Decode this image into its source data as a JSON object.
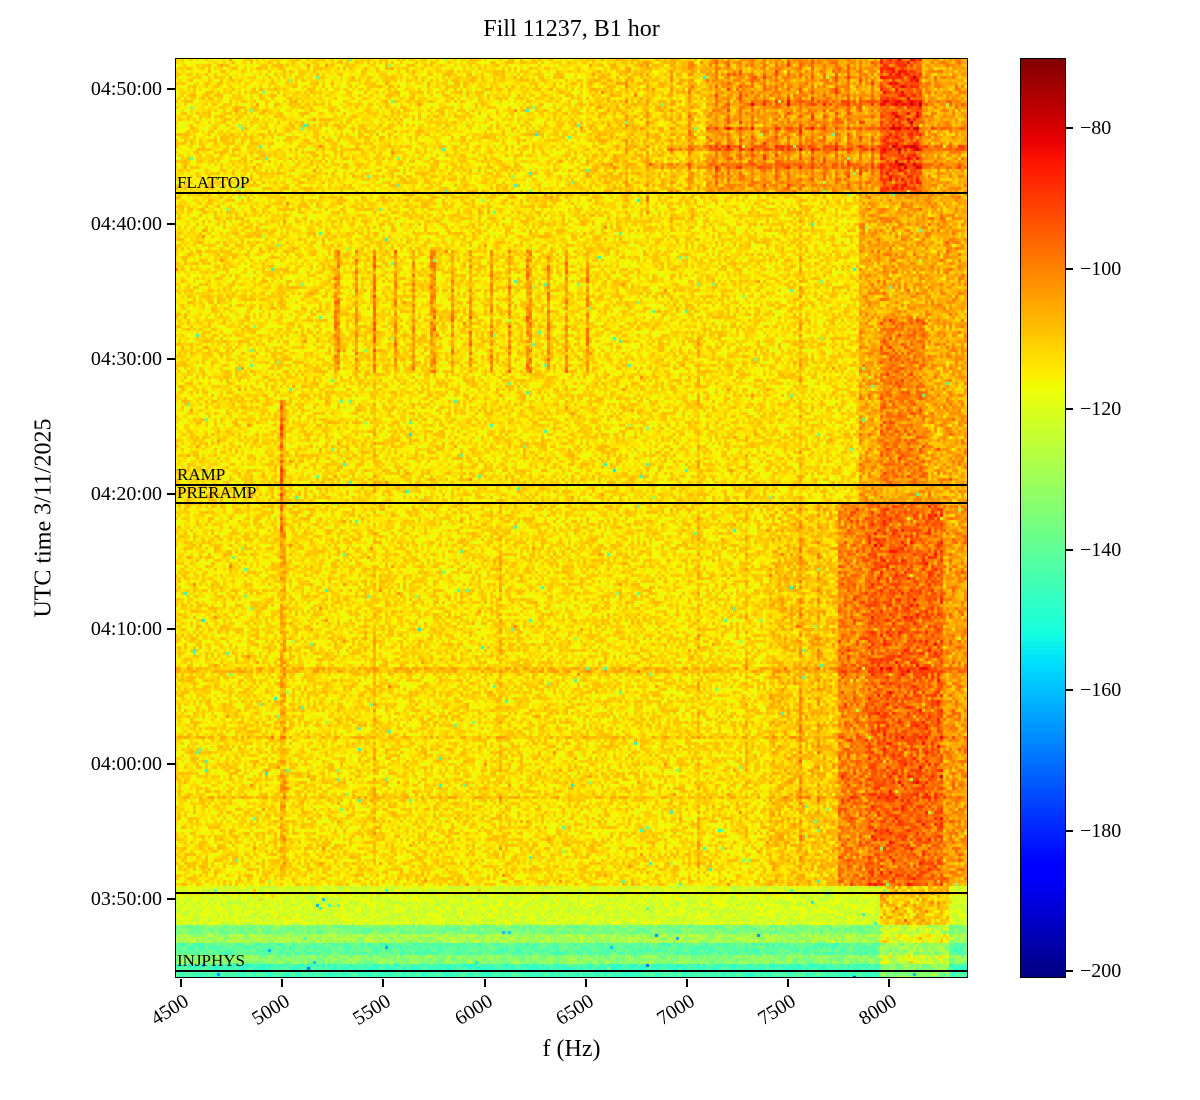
{
  "chart_data": {
    "type": "heatmap",
    "title": "Fill 11237, B1 hor",
    "xlabel": "f (Hz)",
    "ylabel": "UTC time 3/11/2025",
    "x_range_hz": [
      4470,
      8390
    ],
    "x_ticks": [
      4500,
      5000,
      5500,
      6000,
      6500,
      7000,
      7500,
      8000
    ],
    "y_time_range": [
      "03:44:10",
      "04:52:20"
    ],
    "y_ticks": [
      "04:50:00",
      "04:40:00",
      "04:30:00",
      "04:20:00",
      "04:10:00",
      "04:00:00",
      "03:50:00"
    ],
    "colormap": "jet",
    "grid": false,
    "legend": "none",
    "colorbar": {
      "vmin": -201,
      "vmax": -70,
      "ticks": [
        -80,
        -100,
        -120,
        -140,
        -160,
        -180,
        -200
      ]
    },
    "annotations": [
      {
        "label": "FLATTOP",
        "time": "04:42:20"
      },
      {
        "label": "RAMP",
        "time": "04:20:40"
      },
      {
        "label": "PRERAMP",
        "time": "04:19:20"
      },
      {
        "label": "",
        "time": "03:50:30"
      },
      {
        "label": "INJPHYS",
        "time": "03:44:40"
      }
    ],
    "field": {
      "base_db": -113,
      "noise_db": 6,
      "regions": [
        {
          "t0": "03:44:10",
          "t1": "03:45:10",
          "db": -145,
          "noise": 5
        },
        {
          "t0": "03:45:10",
          "t1": "03:45:50",
          "db": -133,
          "noise": 6
        },
        {
          "t0": "03:45:50",
          "t1": "03:46:40",
          "db": -141,
          "noise": 5
        },
        {
          "t0": "03:46:40",
          "t1": "03:47:30",
          "db": -129,
          "noise": 6
        },
        {
          "t0": "03:47:30",
          "t1": "03:48:10",
          "db": -136,
          "noise": 5
        },
        {
          "t0": "03:48:10",
          "t1": "03:51:00",
          "db": -121,
          "noise": 5
        }
      ],
      "vertical_bands": [
        {
          "f0": 7750,
          "f1": 8390,
          "t0": "03:51:00",
          "t1": "04:19:20",
          "add": 12,
          "noise": 7
        },
        {
          "f0": 7900,
          "f1": 8260,
          "t0": "03:51:00",
          "t1": "04:19:20",
          "add": 9,
          "noise": 6
        },
        {
          "f0": 7400,
          "f1": 7900,
          "t0": "03:51:00",
          "t1": "04:19:20",
          "add": 4,
          "noise": 4
        },
        {
          "f0": 7850,
          "f1": 8390,
          "t0": "04:19:20",
          "t1": "04:42:20",
          "add": 9,
          "noise": 6
        },
        {
          "f0": 7960,
          "f1": 8180,
          "t0": "04:20:40",
          "t1": "04:33:00",
          "add": 7,
          "noise": 5
        },
        {
          "f0": 7100,
          "f1": 8390,
          "t0": "04:42:20",
          "t1": "04:52:20",
          "add": 7,
          "noise": 5
        },
        {
          "f0": 6500,
          "f1": 8390,
          "t0": "04:42:20",
          "t1": "04:52:20",
          "add": 3,
          "noise": 3
        },
        {
          "f0": 7960,
          "f1": 8160,
          "t0": "04:42:20",
          "t1": "04:52:20",
          "add": 15,
          "noise": 7
        },
        {
          "f0": 7950,
          "f1": 8300,
          "t0": "03:44:10",
          "t1": "03:51:00",
          "add": 14,
          "noise": 6
        }
      ],
      "vertical_streaks": [
        {
          "f": 5000,
          "hw": 12,
          "t0": "03:52:00",
          "t1": "04:27:00",
          "add": 7
        },
        {
          "f": 4990,
          "hw": 8,
          "t0": "04:17:00",
          "t1": "04:27:00",
          "add": 9
        },
        {
          "f": 4810,
          "hw": 6,
          "t0": "04:03:00",
          "t1": "04:27:00",
          "add": 5
        },
        {
          "f": 5450,
          "hw": 7,
          "t0": "03:52:00",
          "t1": "04:38:00",
          "add": 5
        },
        {
          "f": 6080,
          "hw": 6,
          "t0": "03:54:00",
          "t1": "04:20:00",
          "add": 4
        },
        {
          "f": 6560,
          "hw": 6,
          "t0": "03:58:00",
          "t1": "04:20:00",
          "add": 4
        },
        {
          "f": 7060,
          "hw": 7,
          "t0": "03:52:00",
          "t1": "04:32:00",
          "add": 5
        },
        {
          "f": 7300,
          "hw": 6,
          "t0": "03:54:00",
          "t1": "04:25:00",
          "add": 4
        },
        {
          "f": 7560,
          "hw": 8,
          "t0": "03:52:00",
          "t1": "04:42:00",
          "add": 6
        },
        {
          "f": 7650,
          "hw": 6,
          "t0": "03:55:00",
          "t1": "04:19:00",
          "add": 5
        }
      ],
      "combs": [
        {
          "f_start": 5270,
          "f_step": 95,
          "count": 14,
          "hw": 9,
          "t0": "04:29:00",
          "t1": "04:38:00",
          "add": 11
        },
        {
          "f_start": 7020,
          "f_step": 60,
          "count": 16,
          "hw": 7,
          "t0": "04:42:30",
          "t1": "04:52:20",
          "add": 8
        },
        {
          "f_start": 6700,
          "f_step": 110,
          "count": 4,
          "hw": 6,
          "t0": "04:40:00",
          "t1": "04:52:20",
          "add": 5
        }
      ],
      "horizontal_lines": [
        {
          "time": "04:07:00",
          "f0": 4470,
          "f1": 8390,
          "add": 5
        },
        {
          "time": "04:02:00",
          "f0": 4470,
          "f1": 8390,
          "add": 4
        },
        {
          "time": "03:57:30",
          "f0": 4470,
          "f1": 8390,
          "add": 4
        },
        {
          "time": "03:50:30",
          "f0": 4470,
          "f1": 8390,
          "add": 6
        },
        {
          "time": "04:45:40",
          "f0": 6900,
          "f1": 8390,
          "add": 8
        },
        {
          "time": "04:47:10",
          "f0": 7100,
          "f1": 8390,
          "add": 7
        },
        {
          "time": "04:44:20",
          "f0": 6800,
          "f1": 8390,
          "add": 6
        },
        {
          "time": "04:49:00",
          "f0": 7300,
          "f1": 8390,
          "add": 6
        }
      ]
    }
  }
}
